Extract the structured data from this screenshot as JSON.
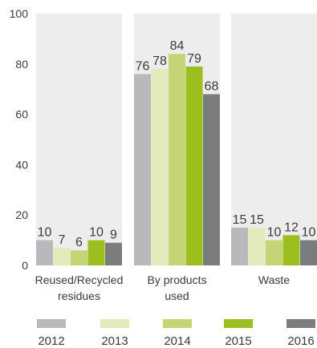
{
  "chart_data": {
    "type": "bar",
    "categories": [
      [
        "Reused/Recycled",
        "residues"
      ],
      [
        "By products",
        "used"
      ],
      [
        "Waste"
      ]
    ],
    "series": [
      {
        "name": "2012",
        "color": "#b9b9bb",
        "values": [
          10,
          76,
          15
        ]
      },
      {
        "name": "2013",
        "color": "#e2ecba",
        "values": [
          7,
          78,
          15
        ]
      },
      {
        "name": "2014",
        "color": "#c5d575",
        "values": [
          6,
          84,
          10
        ]
      },
      {
        "name": "2015",
        "color": "#9cbe1f",
        "values": [
          10,
          79,
          12
        ]
      },
      {
        "name": "2016",
        "color": "#7b7c7e",
        "values": [
          9,
          68,
          10
        ]
      }
    ],
    "yticks": [
      "0",
      "20",
      "40",
      "60",
      "80",
      "100"
    ],
    "ylim": [
      0,
      100
    ],
    "panel_background": "#ededee",
    "legend_position": "bottom",
    "grid": false,
    "title": "",
    "xlabel": "",
    "ylabel": ""
  }
}
